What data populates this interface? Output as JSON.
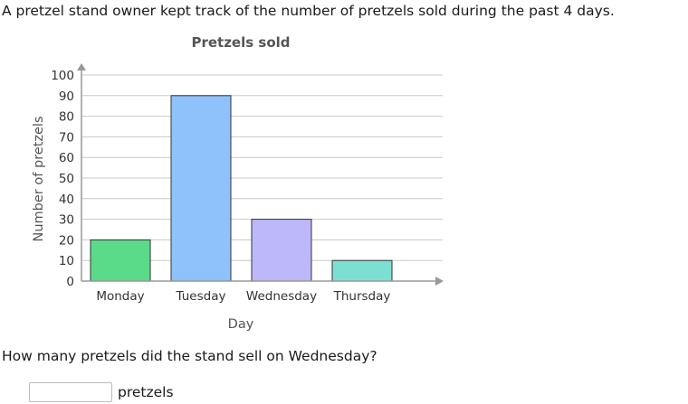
{
  "question": "A pretzel stand owner kept track of the number of pretzels sold during the past 4 days.",
  "sub_question": "How many pretzels did the stand sell on Wednesday?",
  "answer": {
    "value": "",
    "unit": "pretzels"
  },
  "chart_data": {
    "type": "bar",
    "title": "Pretzels sold",
    "xlabel": "Day",
    "ylabel": "Number of pretzels",
    "categories": [
      "Monday",
      "Tuesday",
      "Wednesday",
      "Thursday"
    ],
    "values": [
      20,
      90,
      30,
      10
    ],
    "colors": [
      "#5adb8a",
      "#8fc2fa",
      "#bdb8f9",
      "#7ddfd3"
    ],
    "ylim": [
      0,
      100
    ],
    "yticks": [
      0,
      10,
      20,
      30,
      40,
      50,
      60,
      70,
      80,
      90,
      100
    ],
    "grid": true
  }
}
